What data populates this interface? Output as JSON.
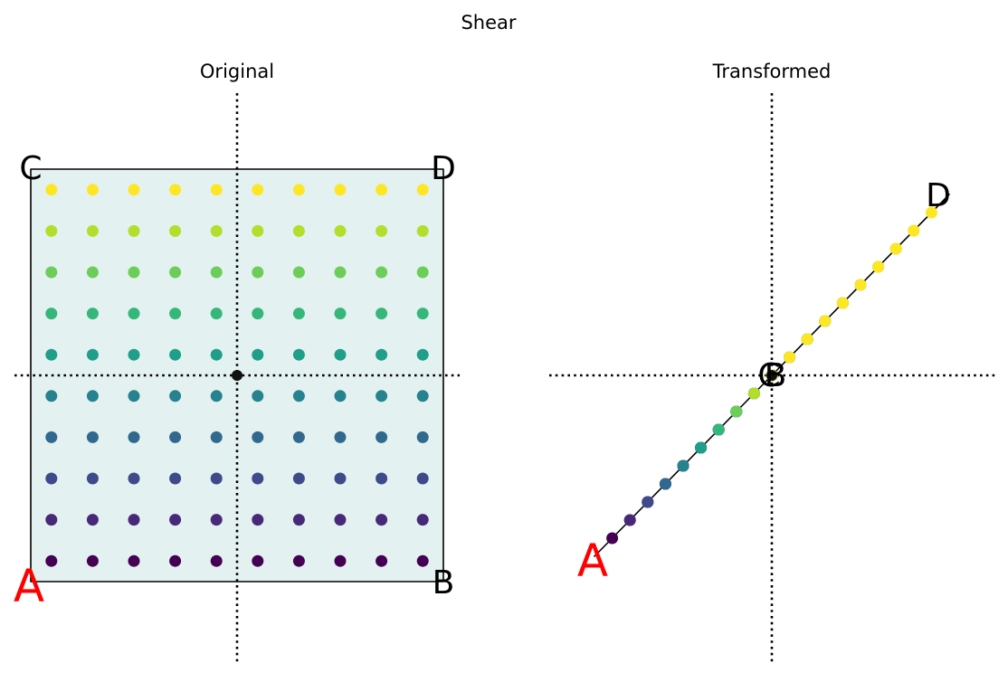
{
  "figure": {
    "title": "Shear"
  },
  "panels": [
    {
      "title": "Original",
      "corners": {
        "A": "A",
        "B": "B",
        "C": "C",
        "D": "D"
      },
      "shear": 0
    },
    {
      "title": "Transformed",
      "corners": {
        "A": "A",
        "B": "B",
        "C": "C",
        "D": "D"
      },
      "shear": 1
    }
  ],
  "grid": {
    "rows": 10,
    "cols": 10,
    "colormap": "viridis"
  },
  "colors": {
    "fill": "#e4f1f1",
    "outline": "#000000",
    "axes": "#000000",
    "origin": "#111111",
    "label_A": "#ff0000",
    "label_other": "#000000"
  }
}
